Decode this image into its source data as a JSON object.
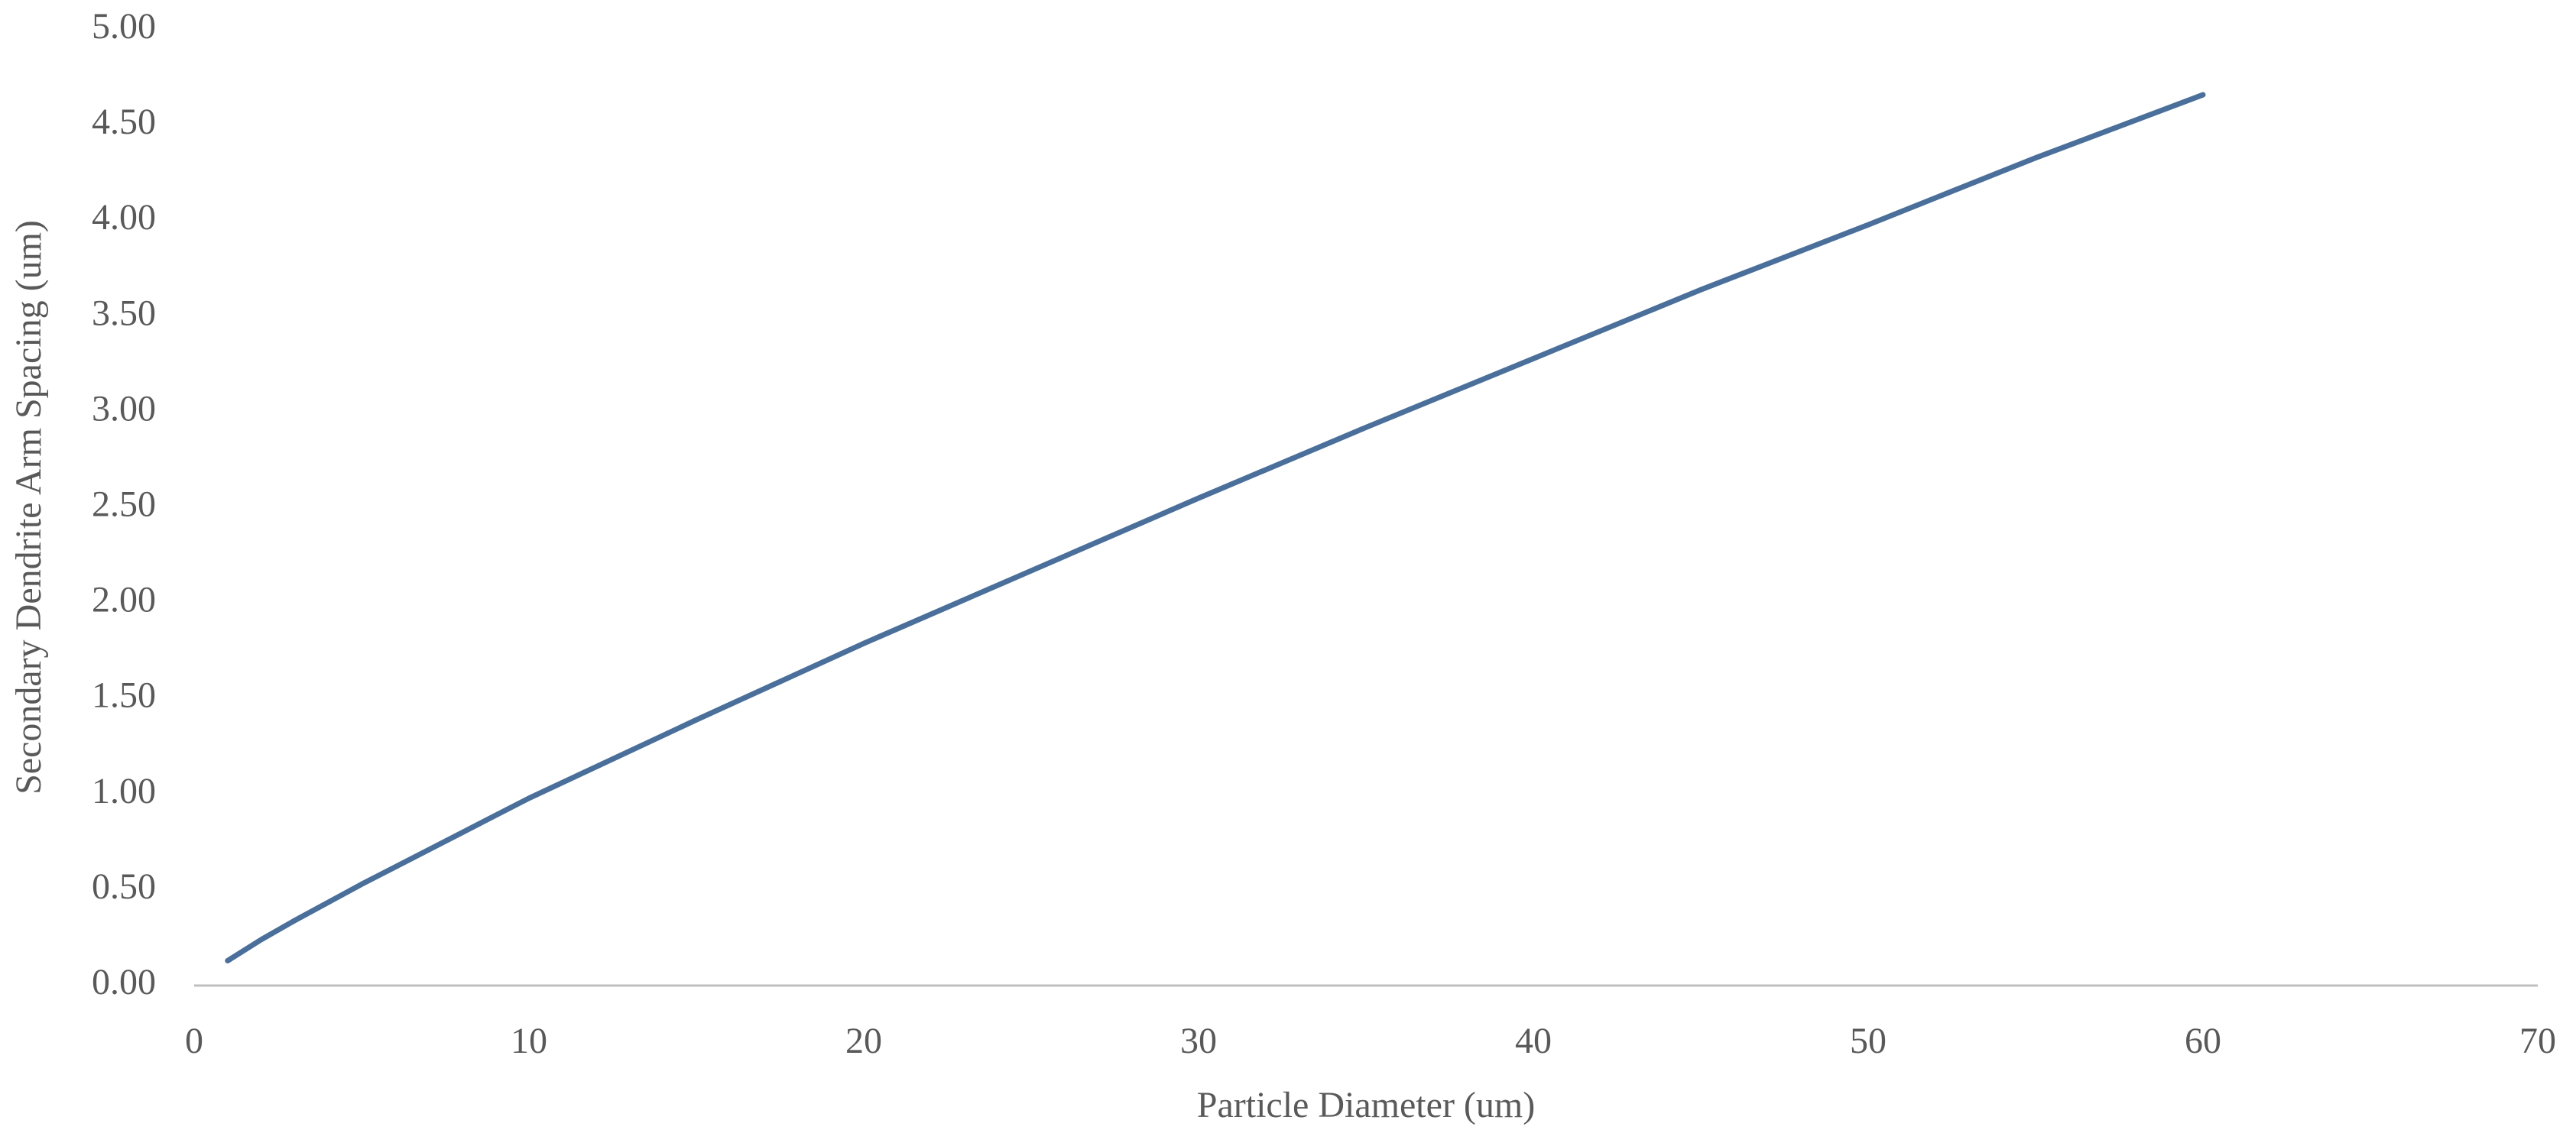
{
  "chart_data": {
    "type": "line",
    "x_label": "Particle Diameter (um)",
    "y_label": "Secondary Dendrite Arm Spacing (um)",
    "x": [
      1,
      2,
      3,
      5,
      8,
      10,
      15,
      20,
      25,
      30,
      35,
      40,
      45,
      50,
      55,
      60
    ],
    "series": [
      {
        "color": "#4a6f9a",
        "values": [
          0.13,
          0.24,
          0.34,
          0.53,
          0.8,
          0.98,
          1.39,
          1.79,
          2.17,
          2.55,
          2.92,
          3.28,
          3.64,
          3.98,
          4.33,
          4.66
        ]
      }
    ],
    "xlim": [
      0,
      70
    ],
    "xticks": [
      0,
      10,
      20,
      30,
      40,
      50,
      60,
      70
    ],
    "ylim": [
      0,
      5
    ],
    "yticks": [
      {
        "value": 0,
        "label": "0.00"
      },
      {
        "value": 0.5,
        "label": "0.50"
      },
      {
        "value": 1,
        "label": "1.00"
      },
      {
        "value": 1.5,
        "label": "1.50"
      },
      {
        "value": 2,
        "label": "2.00"
      },
      {
        "value": 2.5,
        "label": "2.50"
      },
      {
        "value": 3,
        "label": "3.00"
      },
      {
        "value": 3.5,
        "label": "3.50"
      },
      {
        "value": 4,
        "label": "4.00"
      },
      {
        "value": 4.5,
        "label": "4.50"
      },
      {
        "value": 5,
        "label": "5.00"
      }
    ],
    "grid": false
  }
}
